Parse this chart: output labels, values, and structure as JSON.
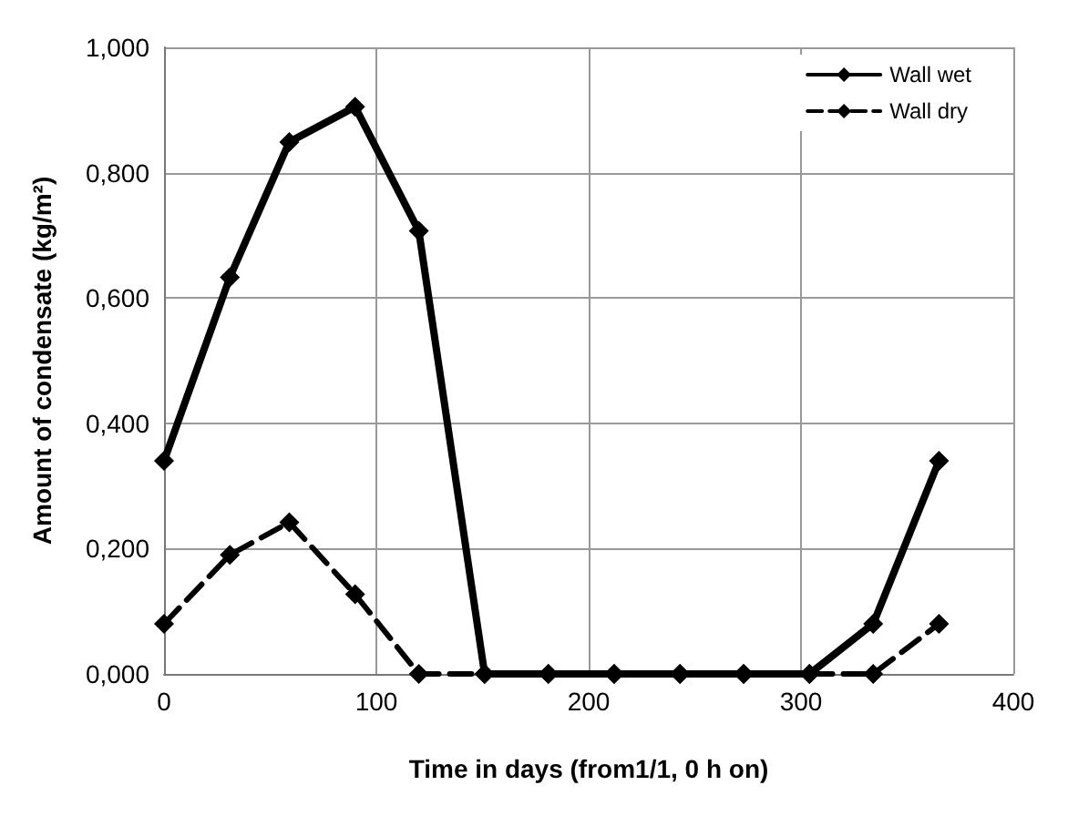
{
  "chart_data": {
    "type": "line",
    "xlabel": "Time in days (from1/1, 0 h on)",
    "ylabel": "Amount of condensate (kg/m²)",
    "x": [
      0,
      31,
      59,
      90,
      120,
      151,
      181,
      212,
      243,
      273,
      304,
      334,
      365
    ],
    "series": [
      {
        "name": "Wall wet",
        "color": "#000000",
        "line_style": "solid",
        "values": [
          0.34,
          0.633,
          0.849,
          0.905,
          0.707,
          0,
          0,
          0,
          0,
          0,
          0,
          0.08,
          0.34
        ]
      },
      {
        "name": "Wall dry",
        "color": "#000000",
        "line_style": "dashed",
        "values": [
          0.08,
          0.19,
          0.242,
          0.127,
          0,
          0,
          0,
          0,
          0,
          0,
          0,
          0,
          0.08
        ]
      }
    ],
    "xlim": [
      0,
      400
    ],
    "xticks": [
      0,
      100,
      200,
      300,
      400
    ],
    "ylim": [
      0,
      1
    ],
    "yticks": [
      {
        "value": 0,
        "label": "0,000"
      },
      {
        "value": 0.2,
        "label": "0,200"
      },
      {
        "value": 0.4,
        "label": "0,400"
      },
      {
        "value": 0.6,
        "label": "0,600"
      },
      {
        "value": 0.8,
        "label": "0,800"
      },
      {
        "value": 1,
        "label": "1,000"
      }
    ],
    "grid": true,
    "legend": "top right",
    "marker": "diamond"
  }
}
